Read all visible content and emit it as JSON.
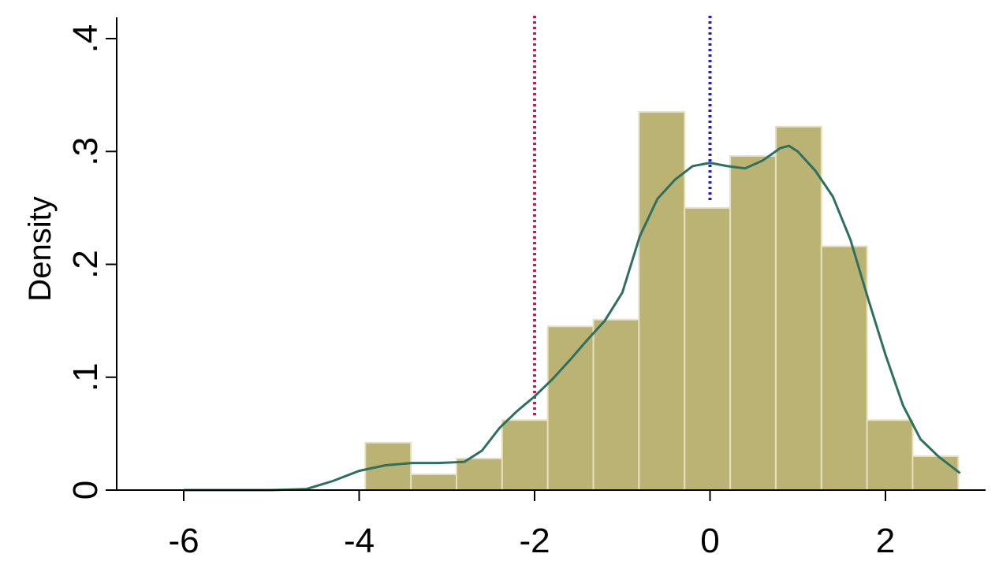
{
  "chart_data": {
    "type": "bar",
    "ylabel": "Density",
    "xlim": [
      -6,
      2.85
    ],
    "ylim": [
      0,
      0.42
    ],
    "x_ticks": [
      "-6",
      "-4",
      "-2",
      "0",
      "2"
    ],
    "x_tick_values": [
      -6,
      -4,
      -2,
      0,
      2
    ],
    "y_ticks": [
      "0",
      ".1",
      ".2",
      ".3",
      ".4"
    ],
    "y_tick_values": [
      0,
      0.1,
      0.2,
      0.3,
      0.4
    ],
    "histogram": {
      "bin_edges": [
        -3.93,
        -3.41,
        -2.89,
        -2.37,
        -1.85,
        -1.33,
        -0.81,
        -0.29,
        0.23,
        0.75,
        1.27,
        1.79,
        2.31,
        2.83
      ],
      "density": [
        0.042,
        0.014,
        0.028,
        0.062,
        0.145,
        0.151,
        0.335,
        0.25,
        0.296,
        0.322,
        0.216,
        0.062,
        0.03
      ],
      "color": "#bbb373"
    },
    "kde": {
      "x": [
        -6,
        -5,
        -4.6,
        -4.3,
        -4.0,
        -3.7,
        -3.4,
        -3.1,
        -2.8,
        -2.6,
        -2.4,
        -2.2,
        -2.0,
        -1.8,
        -1.6,
        -1.4,
        -1.2,
        -1.0,
        -0.8,
        -0.6,
        -0.4,
        -0.2,
        0,
        0.2,
        0.4,
        0.6,
        0.8,
        0.9,
        1.0,
        1.2,
        1.4,
        1.6,
        1.8,
        2.0,
        2.2,
        2.4,
        2.6,
        2.85
      ],
      "y": [
        0,
        0,
        0.001,
        0.008,
        0.017,
        0.022,
        0.024,
        0.024,
        0.025,
        0.035,
        0.055,
        0.07,
        0.083,
        0.098,
        0.115,
        0.133,
        0.15,
        0.175,
        0.225,
        0.258,
        0.275,
        0.287,
        0.29,
        0.287,
        0.285,
        0.292,
        0.303,
        0.305,
        0.3,
        0.283,
        0.26,
        0.222,
        0.17,
        0.12,
        0.075,
        0.045,
        0.03,
        0.015
      ],
      "color": "#2e7060"
    },
    "reference_lines": [
      {
        "x": -2,
        "color": "#c0204a",
        "style": "dotted"
      },
      {
        "x": 0,
        "color": "#2020c0",
        "style": "dotted"
      }
    ]
  }
}
